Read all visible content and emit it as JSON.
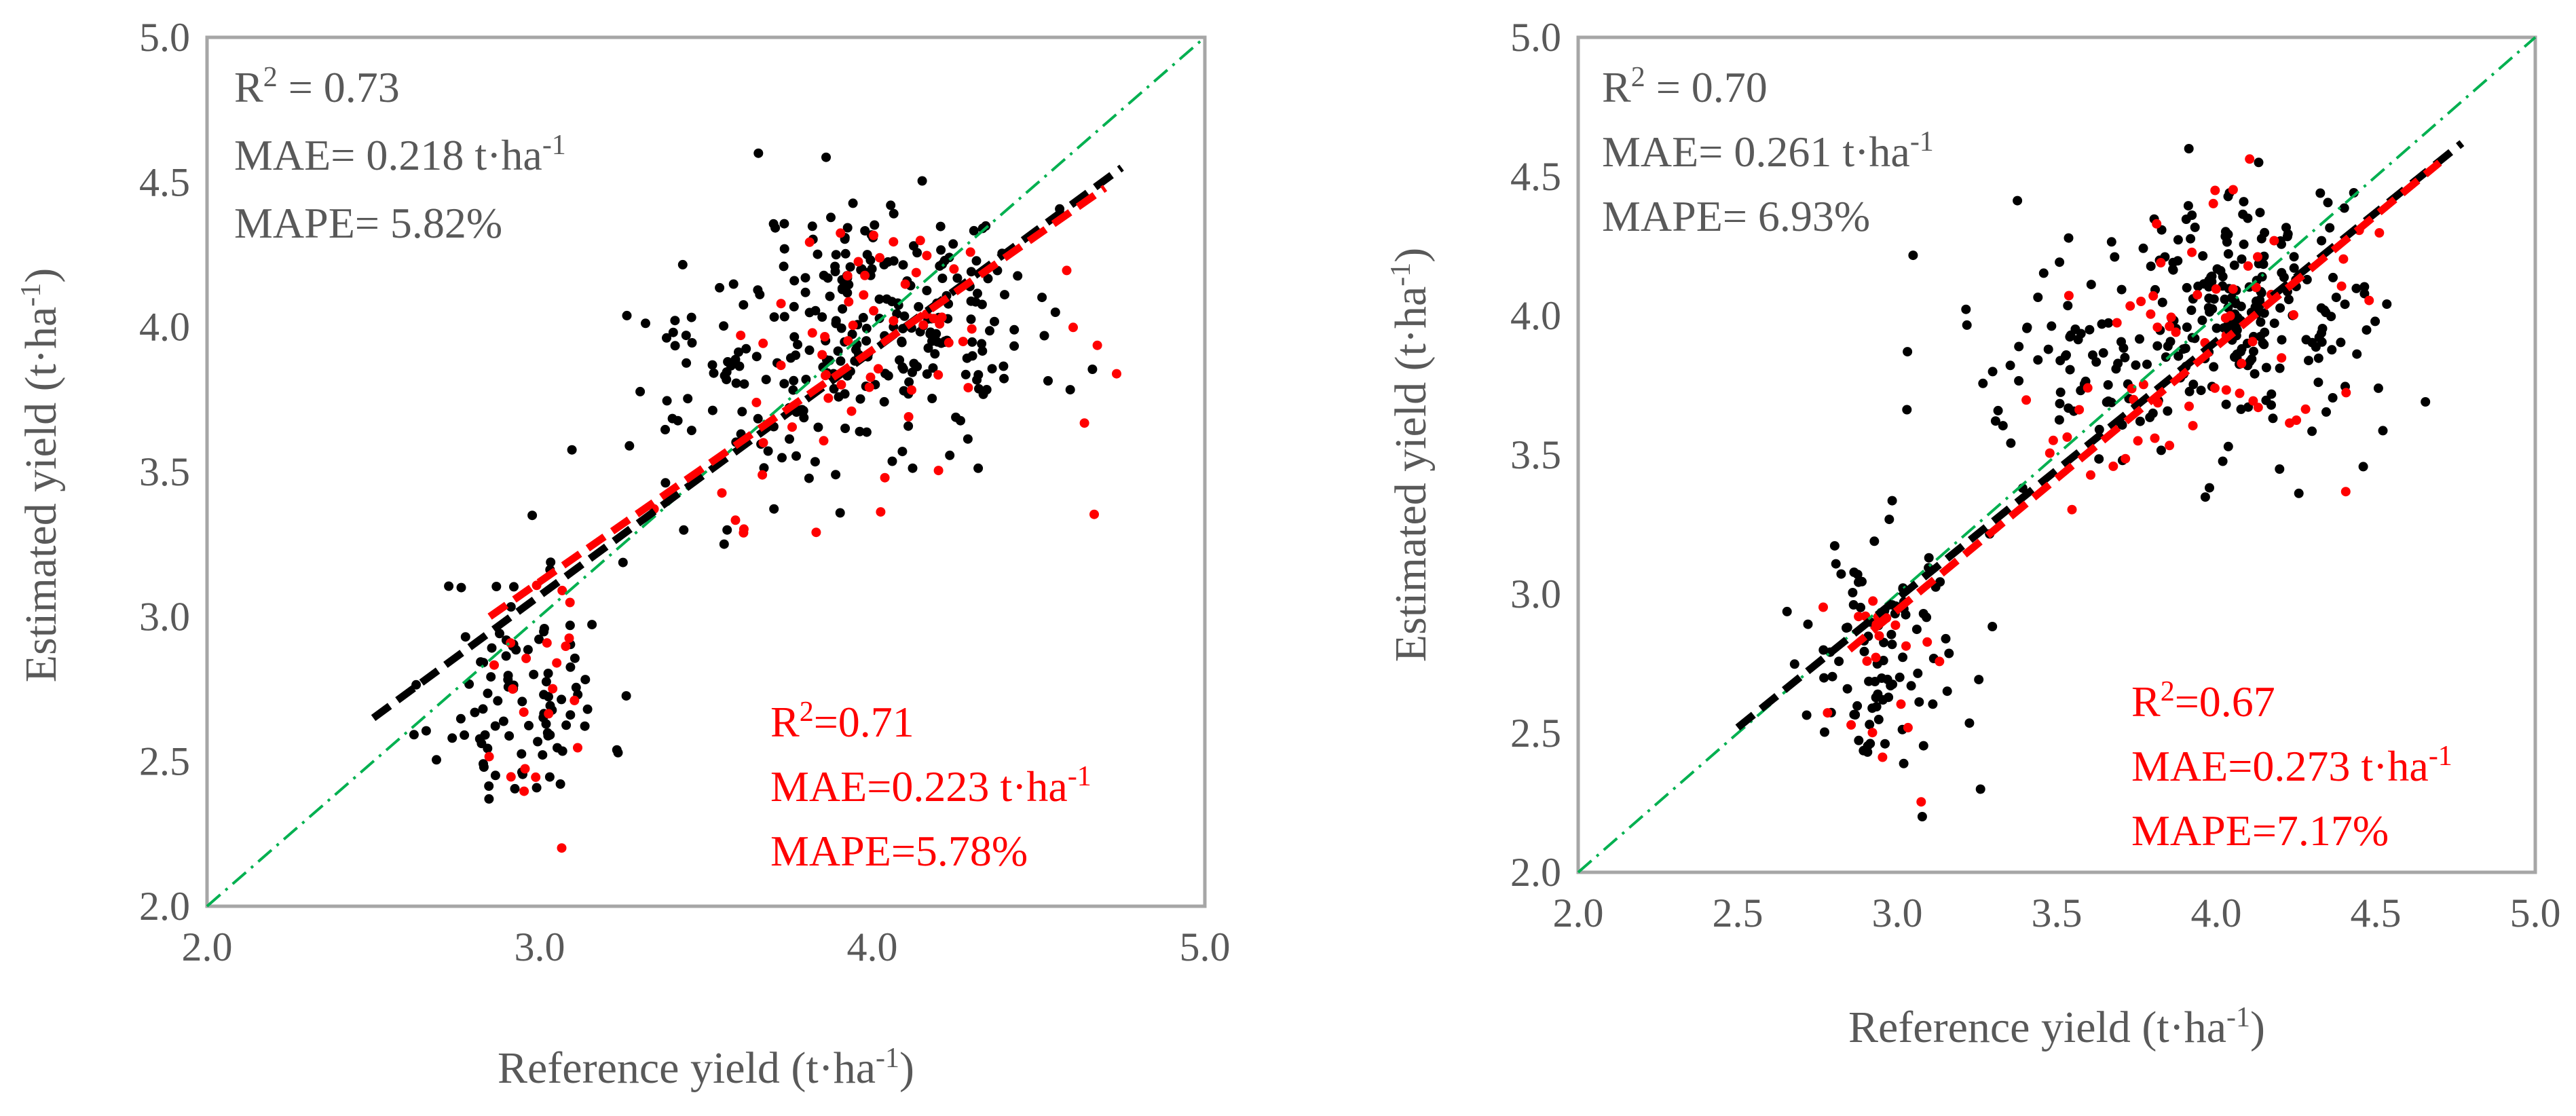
{
  "colors": {
    "series_all": "#000000",
    "series_subset": "#ff0000",
    "one_to_one": "#00b050",
    "frame": "#a6a6a6",
    "text": "#595959",
    "red_text": "#ff0000"
  },
  "chart_data": [
    {
      "type": "scatter",
      "panel": "left",
      "xlabel": "Reference yield (t·ha-1)",
      "xlabel_main": "Reference yield (t·ha",
      "xlabel_sup": "-1",
      "xlabel_end": ")",
      "ylabel": "Estimated yield (t·ha-1)",
      "ylabel_main": "Estimated yield (t·ha",
      "ylabel_sup": "-1",
      "ylabel_end": ")",
      "xlim": [
        2.0,
        5.0
      ],
      "ylim": [
        2.0,
        5.0
      ],
      "x_ticks": [
        "2.0",
        "3.0",
        "4.0",
        "5.0"
      ],
      "y_ticks": [
        "2.0",
        "2.5",
        "3.0",
        "3.5",
        "4.0",
        "4.5",
        "5.0"
      ],
      "stats_all": {
        "r2_prefix": "R",
        "r2_sup": "2",
        "r2_value": " = 0.73",
        "mae_main": "MAE= 0.218 t·ha",
        "mae_sup": "-1",
        "mape": "MAPE= 5.82%"
      },
      "stats_subset": {
        "r2_prefix": "R",
        "r2_sup": "2",
        "r2_value": "=0.71",
        "mae_main": "MAE=0.223 t·ha",
        "mae_sup": "-1",
        "mape": "MAPE=5.78%"
      },
      "one_to_one_line": {
        "from": [
          2.0,
          2.0
        ],
        "to": [
          5.0,
          5.0
        ]
      },
      "fit_all": {
        "from": [
          2.5,
          2.65
        ],
        "to": [
          4.75,
          4.55
        ]
      },
      "fit_subset": {
        "from": [
          2.85,
          3.0
        ],
        "to": [
          4.7,
          4.48
        ]
      },
      "series": [
        {
          "name": "all",
          "color": "#000000",
          "cluster_seed": 11,
          "n_clusters": 3
        },
        {
          "name": "subset",
          "color": "#ff0000",
          "cluster_seed": 29,
          "n_clusters": 3
        }
      ]
    },
    {
      "type": "scatter",
      "panel": "right",
      "xlabel": "Reference yield (t·ha-1)",
      "xlabel_main": "Reference yield (t·ha",
      "xlabel_sup": "-1",
      "xlabel_end": ")",
      "ylabel": "Estimated yield (t·ha-1)",
      "ylabel_main": "Estimated yield (t·ha",
      "ylabel_sup": "-1",
      "ylabel_end": ")",
      "xlim": [
        2.0,
        5.0
      ],
      "ylim": [
        2.0,
        5.0
      ],
      "x_ticks": [
        "2.0",
        "2.5",
        "3.0",
        "3.5",
        "4.0",
        "4.5",
        "5.0"
      ],
      "y_ticks": [
        "2.0",
        "2.5",
        "3.0",
        "3.5",
        "4.0",
        "4.5",
        "5.0"
      ],
      "stats_all": {
        "r2_prefix": "R",
        "r2_sup": "2",
        "r2_value": " = 0.70",
        "mae_main": "MAE= 0.261 t·ha",
        "mae_sup": "-1",
        "mape": "MAPE= 6.93%"
      },
      "stats_subset": {
        "r2_prefix": "R",
        "r2_sup": "2",
        "r2_value": "=0.67",
        "mae_main": "MAE=0.273 t·ha",
        "mae_sup": "-1",
        "mape": "MAPE=7.17%"
      },
      "one_to_one_line": {
        "from": [
          2.0,
          2.0
        ],
        "to": [
          5.0,
          5.0
        ]
      },
      "fit_all": {
        "from": [
          2.5,
          2.52
        ],
        "to": [
          4.77,
          4.62
        ]
      },
      "fit_subset": {
        "from": [
          2.85,
          2.8
        ],
        "to": [
          4.7,
          4.55
        ]
      },
      "series": [
        {
          "name": "all",
          "color": "#000000",
          "cluster_seed": 17,
          "n_clusters": 3
        },
        {
          "name": "subset",
          "color": "#ff0000",
          "cluster_seed": 41,
          "n_clusters": 3
        }
      ]
    }
  ]
}
